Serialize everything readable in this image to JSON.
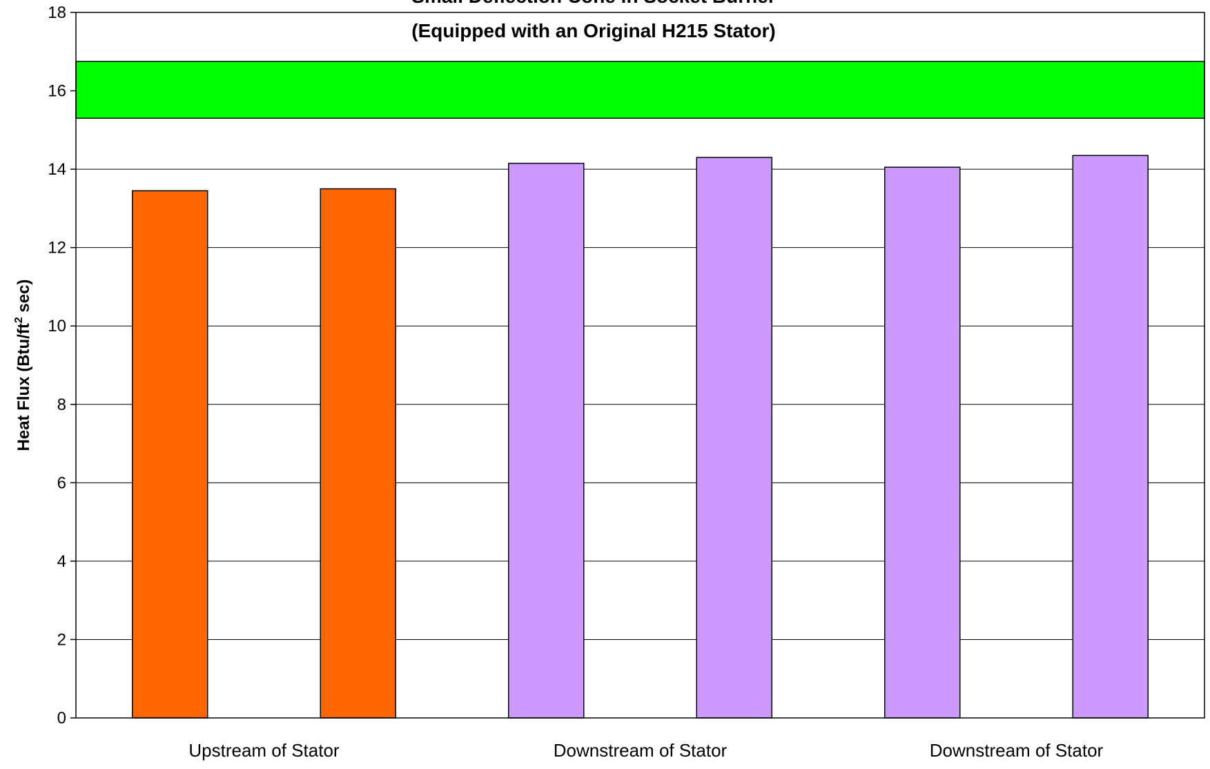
{
  "chart_data": {
    "type": "bar",
    "title_lines": [
      "Small Deflection Cone in Socket Burner",
      "(Equipped with an Original H215 Stator)"
    ],
    "ylabel": "Heat Flux (Btu/ft",
    "ylabel_sup": "2",
    "ylabel_tail": " sec)",
    "xlabel": "",
    "ylim": [
      0,
      18
    ],
    "yticks": [
      0,
      2,
      4,
      6,
      8,
      10,
      12,
      14,
      16,
      18
    ],
    "grid": true,
    "category_labels": [
      "Upstream of Stator",
      "Downstream of Stator",
      "Downstream of Stator"
    ],
    "bars": [
      {
        "group": 0,
        "value": 13.45,
        "color": "#ff6600"
      },
      {
        "group": 0,
        "value": 13.5,
        "color": "#ff6600"
      },
      {
        "group": 1,
        "value": 14.15,
        "color": "#cc99ff"
      },
      {
        "group": 1,
        "value": 14.3,
        "color": "#cc99ff"
      },
      {
        "group": 2,
        "value": 14.05,
        "color": "#cc99ff"
      },
      {
        "group": 2,
        "value": 14.35,
        "color": "#cc99ff"
      }
    ],
    "band": {
      "from": 15.3,
      "to": 16.75,
      "color": "#00ff00"
    }
  }
}
